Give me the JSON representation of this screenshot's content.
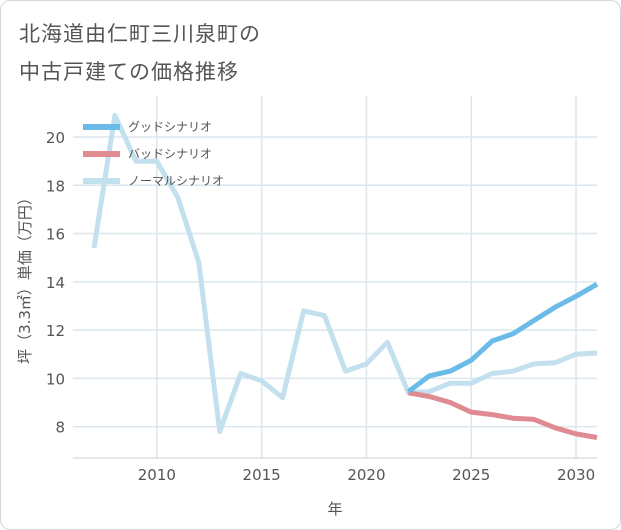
{
  "title_lines": [
    "北海道由仁町三川泉町の",
    "中古戸建ての価格推移"
  ],
  "chart_data": {
    "type": "line",
    "title": "北海道由仁町三川泉町の中古戸建ての価格推移",
    "xlabel": "年",
    "ylabel": "坪（3.3㎡）単価（万円）",
    "xlim": [
      2006,
      2031
    ],
    "ylim": [
      6.7,
      21.7
    ],
    "xticks": [
      2010,
      2015,
      2020,
      2025,
      2030
    ],
    "yticks": [
      8,
      10,
      12,
      14,
      16,
      18,
      20
    ],
    "grid": true,
    "legend_position": "top-left",
    "series": [
      {
        "name": "グッドシナリオ",
        "color": "#6bbbe8",
        "x": [
          2022,
          2023,
          2024,
          2025,
          2026,
          2027,
          2028,
          2029,
          2030,
          2031
        ],
        "values": [
          9.45,
          10.1,
          10.3,
          10.75,
          11.55,
          11.85,
          12.4,
          12.95,
          13.4,
          13.9
        ]
      },
      {
        "name": "バッドシナリオ",
        "color": "#e08a92",
        "x": [
          2022,
          2023,
          2024,
          2025,
          2026,
          2027,
          2028,
          2029,
          2030,
          2031
        ],
        "values": [
          9.4,
          9.25,
          9.0,
          8.6,
          8.5,
          8.35,
          8.3,
          7.95,
          7.7,
          7.55
        ]
      },
      {
        "name": "ノーマルシナリオ",
        "color": "#c2e0ee",
        "x": [
          2007,
          2008,
          2009,
          2010,
          2011,
          2012,
          2013,
          2014,
          2015,
          2016,
          2017,
          2018,
          2019,
          2020,
          2021,
          2022,
          2023,
          2024,
          2025,
          2026,
          2027,
          2028,
          2029,
          2030,
          2031
        ],
        "values": [
          15.4,
          20.9,
          19.0,
          19.0,
          17.5,
          14.8,
          7.8,
          10.2,
          9.9,
          9.2,
          12.8,
          12.6,
          10.3,
          10.6,
          11.5,
          9.4,
          9.45,
          9.8,
          9.8,
          10.2,
          10.3,
          10.6,
          10.65,
          11.0,
          11.05
        ]
      }
    ]
  }
}
